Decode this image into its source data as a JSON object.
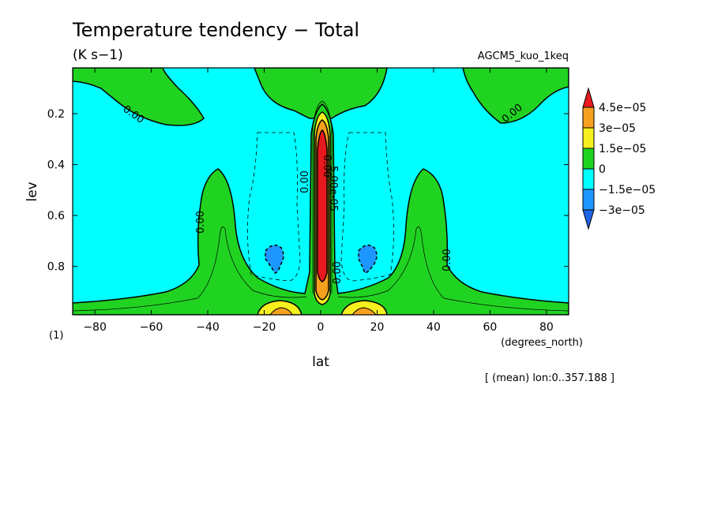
{
  "chart_data": {
    "type": "heatmap",
    "subtype": "filled-contour",
    "title": "Temperature tendency − Total",
    "units": "(K s−1)",
    "model": "AGCM5_kuo_1keq",
    "xlabel": "lat",
    "xunits": "(degrees_north)",
    "ylabel": "lev",
    "yunits": "(1)",
    "averaging_note": "[ (mean) lon:0..357.188 ]",
    "xlim": [
      -87.86,
      87.86
    ],
    "ylim": [
      0.99,
      0.02
    ],
    "xticks": [
      "−80",
      "−60",
      "−40",
      "−20",
      "0",
      "20",
      "40",
      "60",
      "80"
    ],
    "xtick_values": [
      -80,
      -60,
      -40,
      -20,
      0,
      20,
      40,
      60,
      80
    ],
    "yticks": [
      "0.2",
      "0.4",
      "0.6",
      "0.8"
    ],
    "ytick_values": [
      0.2,
      0.4,
      0.6,
      0.8
    ],
    "colorbar": {
      "labels": [
        "4.5e−05",
        "3e−05",
        "1.5e−05",
        "0",
        "−1.5e−05",
        "−3e−05"
      ],
      "levels": [
        4.5e-05,
        3e-05,
        1.5e-05,
        0,
        -1.5e-05,
        -3e-05
      ],
      "colors": [
        "#e8191e",
        "#f5a01e",
        "#f5f01e",
        "#21d321",
        "#00ffff",
        "#1e96ff",
        "#1e64e6"
      ]
    },
    "contour_labels": [
      "0.00",
      "0.00",
      "0.00",
      "0.00",
      "0.00",
      "0.00",
      "0.00",
      "5.00e-05"
    ],
    "colors": {
      "positive_high": "#e8191e",
      "positive_mid": "#f5a01e",
      "positive_low": "#f5f01e",
      "near_zero_positive": "#21d321",
      "near_zero_negative": "#00ffff",
      "negative": "#1e96ff"
    }
  }
}
